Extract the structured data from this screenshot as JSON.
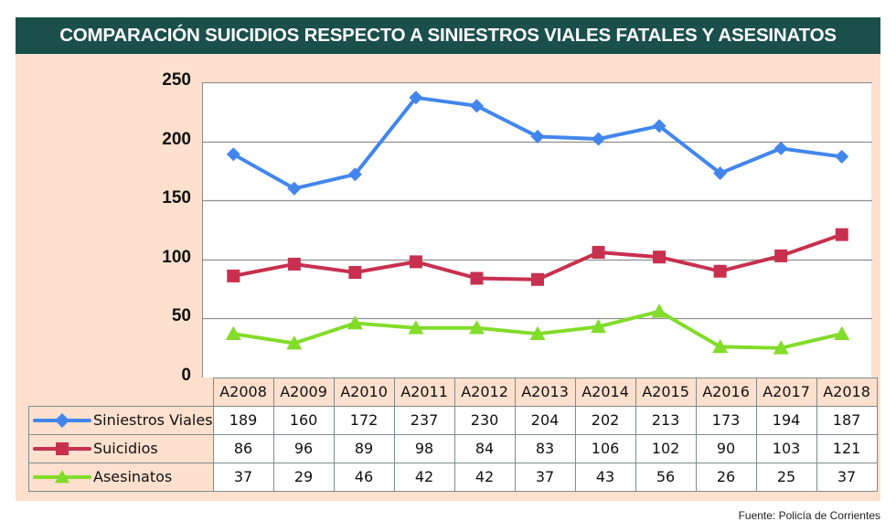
{
  "title": "COMPARACIÓN SUICIDIOS RESPECTO A SINIESTROS VIALES FATALES Y ASESINATOS",
  "source": "Fuente: Policía de Corrientes",
  "chart_data": {
    "type": "line",
    "title": "COMPARACIÓN SUICIDIOS RESPECTO A SINIESTROS VIALES FATALES Y ASESINATOS",
    "xlabel": "",
    "ylabel": "",
    "categories": [
      "A2008",
      "A2009",
      "A2010",
      "A2011",
      "A2012",
      "A2013",
      "A2014",
      "A2015",
      "A2016",
      "A2017",
      "A2018"
    ],
    "ylim": [
      0,
      250
    ],
    "yticks": [
      "0",
      "50",
      "100",
      "150",
      "200",
      "250"
    ],
    "grid": true,
    "legend": "bottom-left (data table)",
    "series": [
      {
        "name": "Siniestros Viales",
        "color": "#4286ec",
        "marker": "diamond",
        "values": [
          189,
          160,
          172,
          237,
          230,
          204,
          202,
          213,
          173,
          194,
          187
        ]
      },
      {
        "name": "Suicidios",
        "color": "#c8304f",
        "marker": "square",
        "values": [
          86,
          96,
          89,
          98,
          84,
          83,
          106,
          102,
          90,
          103,
          121
        ]
      },
      {
        "name": "Asesinatos",
        "color": "#82dc2a",
        "marker": "triangle",
        "values": [
          37,
          29,
          46,
          42,
          42,
          37,
          43,
          56,
          26,
          25,
          37
        ]
      }
    ]
  }
}
